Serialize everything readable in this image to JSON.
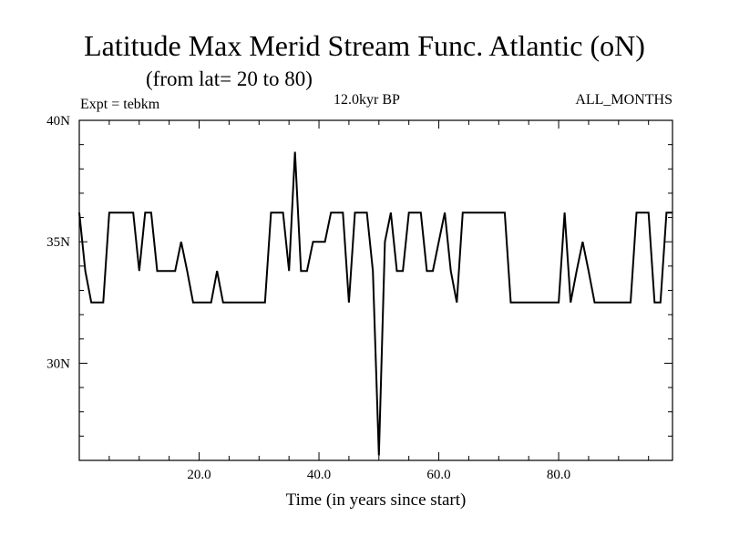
{
  "chart_data": {
    "type": "line",
    "title": "Latitude Max Merid Stream Func. Atlantic (oN)",
    "subtitle": "(from lat= 20 to 80)",
    "left_label": "Expt = tebkm",
    "center_label": "12.0kyr BP",
    "right_label": "ALL_MONTHS",
    "xlabel": "Time (in years since start)",
    "ylabel": "",
    "xlim": [
      0,
      99
    ],
    "ylim": [
      26,
      40
    ],
    "x_ticks": [
      20,
      40,
      60,
      80
    ],
    "x_tick_labels": [
      "20.0",
      "40.0",
      "60.0",
      "80.0"
    ],
    "y_ticks": [
      30,
      35,
      40
    ],
    "y_tick_labels": [
      "30N",
      "35N",
      "40N"
    ],
    "grid": false,
    "series": [
      {
        "x": [
          0,
          1,
          2,
          3,
          4,
          5,
          6,
          7,
          8,
          9,
          10,
          11,
          12,
          13,
          14,
          15,
          16,
          17,
          18,
          19,
          20,
          21,
          22,
          23,
          24,
          25,
          26,
          27,
          28,
          29,
          30,
          31,
          32,
          33,
          34,
          35,
          36,
          37,
          38,
          39,
          40,
          41,
          42,
          43,
          44,
          45,
          46,
          47,
          48,
          49,
          50,
          51,
          52,
          53,
          54,
          55,
          56,
          57,
          58,
          59,
          60,
          61,
          62,
          63,
          64,
          65,
          66,
          67,
          68,
          69,
          70,
          71,
          72,
          73,
          74,
          75,
          76,
          77,
          78,
          79,
          80,
          81,
          82,
          83,
          84,
          85,
          86,
          87,
          88,
          89,
          90,
          91,
          92,
          93,
          94,
          95,
          96,
          97,
          98,
          99
        ],
        "y": [
          36.2,
          33.8,
          32.5,
          32.5,
          32.5,
          36.2,
          36.2,
          36.2,
          36.2,
          36.2,
          33.8,
          36.2,
          36.2,
          33.8,
          33.8,
          33.8,
          33.8,
          35.0,
          33.8,
          32.5,
          32.5,
          32.5,
          32.5,
          33.8,
          32.5,
          32.5,
          32.5,
          32.5,
          32.5,
          32.5,
          32.5,
          32.5,
          36.2,
          36.2,
          36.2,
          33.8,
          38.7,
          33.8,
          33.8,
          35.0,
          35.0,
          35.0,
          36.2,
          36.2,
          36.2,
          32.5,
          36.2,
          36.2,
          36.2,
          33.8,
          26.2,
          35.0,
          36.2,
          33.8,
          33.8,
          36.2,
          36.2,
          36.2,
          33.8,
          33.8,
          35.0,
          36.2,
          33.8,
          32.5,
          36.2,
          36.2,
          36.2,
          36.2,
          36.2,
          36.2,
          36.2,
          36.2,
          32.5,
          32.5,
          32.5,
          32.5,
          32.5,
          32.5,
          32.5,
          32.5,
          32.5,
          36.2,
          32.5,
          33.8,
          35.0,
          33.8,
          32.5,
          32.5,
          32.5,
          32.5,
          32.5,
          32.5,
          32.5,
          36.2,
          36.2,
          36.2,
          32.5,
          32.5,
          36.2,
          36.2
        ]
      }
    ]
  }
}
